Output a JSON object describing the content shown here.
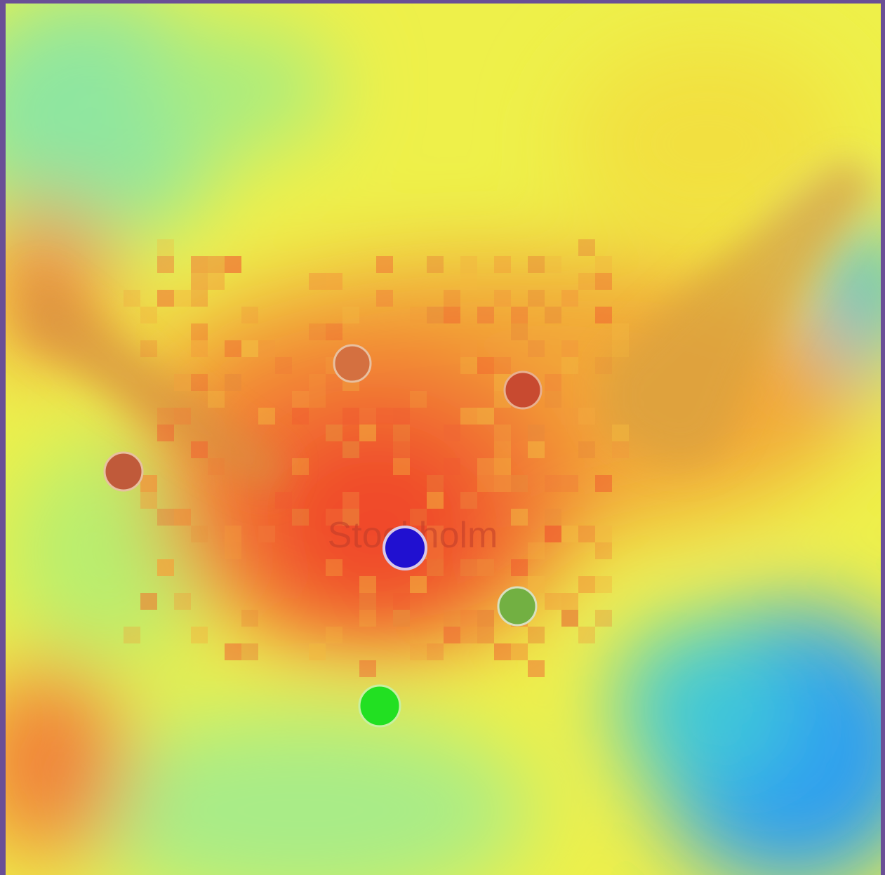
{
  "map": {
    "place_label": "Stockholm"
  }
}
